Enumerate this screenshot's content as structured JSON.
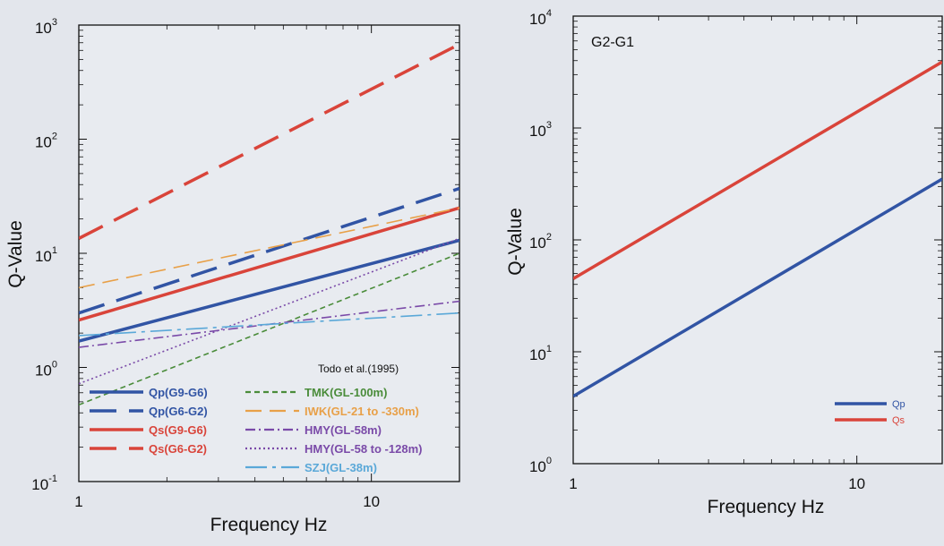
{
  "chart_data": [
    {
      "type": "line",
      "title": "",
      "xlabel": "Frequency Hz",
      "ylabel": "Q-Value",
      "x_scale": "log",
      "y_scale": "log",
      "xlim": [
        1,
        20
      ],
      "ylim": [
        0.1,
        1000
      ],
      "x_ticks": [
        {
          "base": "1",
          "exp": ""
        },
        {
          "base": "10",
          "exp": ""
        }
      ],
      "y_ticks": [
        {
          "base": "10",
          "exp": "-1"
        },
        {
          "base": "10",
          "exp": "0"
        },
        {
          "base": "10",
          "exp": "1"
        },
        {
          "base": "10",
          "exp": "2"
        },
        {
          "base": "10",
          "exp": "3"
        }
      ],
      "legend_header": "Todo et al.(1995)",
      "legend_placement": "bottom",
      "series": [
        {
          "name": "Qp(G9-G6)",
          "x": [
            1,
            20
          ],
          "y": [
            1.7,
            13
          ],
          "color": "#3154a4",
          "dash": "solid",
          "width": 3.5
        },
        {
          "name": "Qp(G6-G2)",
          "x": [
            1,
            20
          ],
          "y": [
            3.0,
            37
          ],
          "color": "#3154a4",
          "dash": "long",
          "width": 3.5
        },
        {
          "name": "Qs(G9-G6)",
          "x": [
            1,
            20
          ],
          "y": [
            2.6,
            25
          ],
          "color": "#d9443a",
          "dash": "solid",
          "width": 3.5
        },
        {
          "name": "Qs(G6-G2)",
          "x": [
            1,
            20
          ],
          "y": [
            13.5,
            680
          ],
          "color": "#d9443a",
          "dash": "long",
          "width": 3.5
        },
        {
          "name": "TMK(GL-100m)",
          "x": [
            1,
            20
          ],
          "y": [
            0.47,
            10
          ],
          "color": "#4a8c3a",
          "dash": "short",
          "width": 1.6
        },
        {
          "name": "IWK(GL-21 to -330m)",
          "x": [
            1,
            20
          ],
          "y": [
            5.0,
            25
          ],
          "color": "#e8a048",
          "dash": "medium",
          "width": 1.6
        },
        {
          "name": "HMY(GL-58m)",
          "x": [
            1,
            20
          ],
          "y": [
            1.5,
            3.8
          ],
          "color": "#7a4aa8",
          "dash": "dashdot",
          "width": 1.6
        },
        {
          "name": "HMY(GL-58 to -128m)",
          "x": [
            1,
            20
          ],
          "y": [
            0.72,
            13.5
          ],
          "color": "#7a4aa8",
          "dash": "dot",
          "width": 1.6
        },
        {
          "name": "SZJ(GL-38m)",
          "x": [
            1,
            20
          ],
          "y": [
            1.9,
            3.0
          ],
          "color": "#5aa8d8",
          "dash": "longshort",
          "width": 1.6
        }
      ]
    },
    {
      "type": "line",
      "title": "G2-G1",
      "xlabel": "Frequency Hz",
      "ylabel": "Q-Value",
      "x_scale": "log",
      "y_scale": "log",
      "xlim": [
        1,
        20
      ],
      "ylim": [
        1,
        10000
      ],
      "x_ticks": [
        {
          "base": "1",
          "exp": ""
        },
        {
          "base": "10",
          "exp": ""
        }
      ],
      "y_ticks": [
        {
          "base": "10",
          "exp": "0"
        },
        {
          "base": "10",
          "exp": "1"
        },
        {
          "base": "10",
          "exp": "2"
        },
        {
          "base": "10",
          "exp": "3"
        },
        {
          "base": "10",
          "exp": "4"
        }
      ],
      "legend_placement": "bottom-right",
      "series": [
        {
          "name": "Qp",
          "x": [
            1,
            20
          ],
          "y": [
            4.0,
            350
          ],
          "color": "#3154a4",
          "dash": "solid",
          "width": 3.5
        },
        {
          "name": "Qs",
          "x": [
            1,
            20
          ],
          "y": [
            45,
            3900
          ],
          "color": "#d9443a",
          "dash": "solid",
          "width": 3.5
        }
      ]
    }
  ]
}
